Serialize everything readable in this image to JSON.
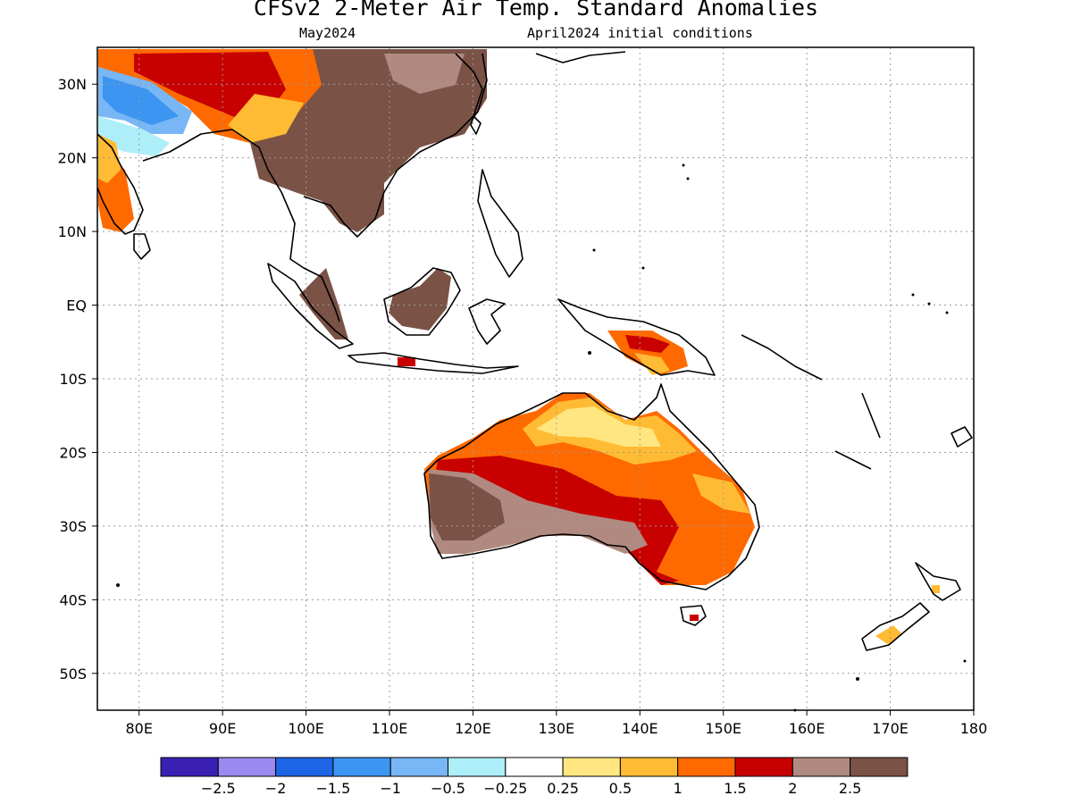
{
  "header": {
    "title": "CFSv2 2-Meter Air Temp. Standard Anomalies",
    "month": "May2024",
    "init": "April2024 initial conditions"
  },
  "map": {
    "lon_range": [
      75,
      180
    ],
    "lat_range": [
      -55,
      35
    ],
    "lon_ticks": [
      {
        "value": 80,
        "label": "80E"
      },
      {
        "value": 90,
        "label": "90E"
      },
      {
        "value": 100,
        "label": "100E"
      },
      {
        "value": 110,
        "label": "110E"
      },
      {
        "value": 120,
        "label": "120E"
      },
      {
        "value": 130,
        "label": "130E"
      },
      {
        "value": 140,
        "label": "140E"
      },
      {
        "value": 150,
        "label": "150E"
      },
      {
        "value": 160,
        "label": "160E"
      },
      {
        "value": 170,
        "label": "170E"
      },
      {
        "value": 180,
        "label": "180"
      }
    ],
    "lat_ticks": [
      {
        "value": 30,
        "label": "30N"
      },
      {
        "value": 20,
        "label": "20N"
      },
      {
        "value": 10,
        "label": "10N"
      },
      {
        "value": 0,
        "label": "EQ"
      },
      {
        "value": -10,
        "label": "10S"
      },
      {
        "value": -20,
        "label": "20S"
      },
      {
        "value": -30,
        "label": "30S"
      },
      {
        "value": -40,
        "label": "40S"
      },
      {
        "value": -50,
        "label": "50S"
      }
    ],
    "gridlines": true
  },
  "colorbar": {
    "colors": [
      "#3a1fb5",
      "#9a8af0",
      "#1e64e6",
      "#3c95f0",
      "#78b6f5",
      "#aeeef8",
      "#ffffff",
      "#ffe680",
      "#ffbb33",
      "#ff6a00",
      "#c80000",
      "#b08a80",
      "#7a5246"
    ],
    "labels": [
      "-2.5",
      "-2",
      "-1.5",
      "-1",
      "-0.5",
      "-0.25",
      "0.25",
      "0.5",
      "1",
      "1.5",
      "2",
      "2.5"
    ]
  }
}
